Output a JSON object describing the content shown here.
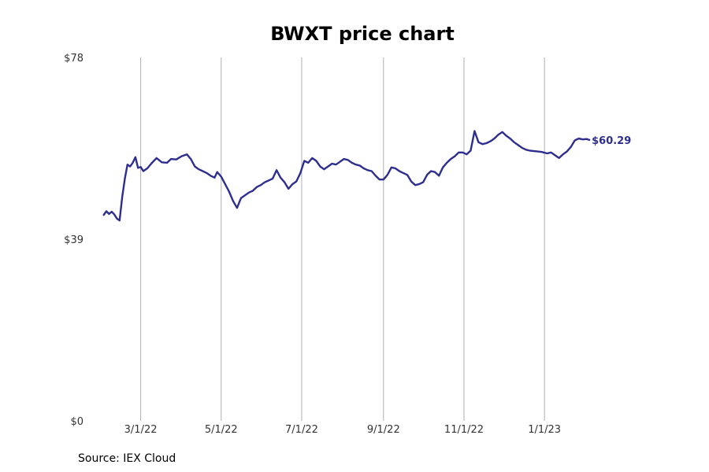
{
  "chart_data": {
    "type": "line",
    "title": "BWXT price chart",
    "source": "Source: IEX Cloud",
    "xlabel": "",
    "ylabel": "",
    "y_ticks": [
      "$78",
      "$39",
      "$0"
    ],
    "y_tick_values": [
      78,
      39,
      0
    ],
    "ylim": [
      0,
      78
    ],
    "x_ticks": [
      {
        "date": "2022-03-01",
        "label": "3/1/22"
      },
      {
        "date": "2022-05-01",
        "label": "5/1/22"
      },
      {
        "date": "2022-07-01",
        "label": "7/1/22"
      },
      {
        "date": "2022-09-01",
        "label": "9/1/22"
      },
      {
        "date": "2022-11-01",
        "label": "11/1/22"
      },
      {
        "date": "2023-01-01",
        "label": "1/1/23"
      }
    ],
    "xlim": [
      "2022-01-31",
      "2023-03-01"
    ],
    "vertical_grid": true,
    "line_color": "#2e2e8f",
    "last_value_label": "$60.29",
    "series": [
      {
        "points": [
          [
            "2022-02-01",
            44.2
          ],
          [
            "2022-02-03",
            45.0
          ],
          [
            "2022-02-05",
            44.4
          ],
          [
            "2022-02-07",
            44.9
          ],
          [
            "2022-02-09",
            44.3
          ],
          [
            "2022-02-11",
            43.4
          ],
          [
            "2022-02-13",
            43.0
          ],
          [
            "2022-02-15",
            48.0
          ],
          [
            "2022-02-17",
            52.0
          ],
          [
            "2022-02-19",
            55.0
          ],
          [
            "2022-02-21",
            54.6
          ],
          [
            "2022-02-23",
            55.4
          ],
          [
            "2022-02-25",
            56.6
          ],
          [
            "2022-02-27",
            54.3
          ],
          [
            "2022-03-01",
            54.5
          ],
          [
            "2022-03-03",
            53.6
          ],
          [
            "2022-03-06",
            54.2
          ],
          [
            "2022-03-09",
            55.2
          ],
          [
            "2022-03-13",
            56.4
          ],
          [
            "2022-03-17",
            55.5
          ],
          [
            "2022-03-21",
            55.4
          ],
          [
            "2022-03-24",
            56.2
          ],
          [
            "2022-03-28",
            56.1
          ],
          [
            "2022-04-01",
            56.8
          ],
          [
            "2022-04-05",
            57.2
          ],
          [
            "2022-04-08",
            56.2
          ],
          [
            "2022-04-11",
            54.6
          ],
          [
            "2022-04-14",
            54.0
          ],
          [
            "2022-04-17",
            53.6
          ],
          [
            "2022-04-20",
            53.2
          ],
          [
            "2022-04-23",
            52.6
          ],
          [
            "2022-04-26",
            52.2
          ],
          [
            "2022-04-28",
            53.4
          ],
          [
            "2022-05-01",
            52.4
          ],
          [
            "2022-05-04",
            50.8
          ],
          [
            "2022-05-07",
            49.2
          ],
          [
            "2022-05-10",
            47.2
          ],
          [
            "2022-05-13",
            45.7
          ],
          [
            "2022-05-16",
            47.8
          ],
          [
            "2022-05-19",
            48.4
          ],
          [
            "2022-05-22",
            49.0
          ],
          [
            "2022-05-25",
            49.4
          ],
          [
            "2022-05-28",
            50.2
          ],
          [
            "2022-05-31",
            50.6
          ],
          [
            "2022-06-03",
            51.2
          ],
          [
            "2022-06-06",
            51.6
          ],
          [
            "2022-06-09",
            52.0
          ],
          [
            "2022-06-12",
            53.8
          ],
          [
            "2022-06-15",
            52.2
          ],
          [
            "2022-06-18",
            51.2
          ],
          [
            "2022-06-21",
            49.8
          ],
          [
            "2022-06-24",
            50.8
          ],
          [
            "2022-06-27",
            51.4
          ],
          [
            "2022-06-30",
            53.2
          ],
          [
            "2022-07-03",
            55.8
          ],
          [
            "2022-07-06",
            55.4
          ],
          [
            "2022-07-09",
            56.4
          ],
          [
            "2022-07-12",
            55.8
          ],
          [
            "2022-07-15",
            54.6
          ],
          [
            "2022-07-18",
            54.0
          ],
          [
            "2022-07-21",
            54.6
          ],
          [
            "2022-07-24",
            55.2
          ],
          [
            "2022-07-27",
            55.0
          ],
          [
            "2022-07-30",
            55.6
          ],
          [
            "2022-08-02",
            56.2
          ],
          [
            "2022-08-05",
            56.0
          ],
          [
            "2022-08-08",
            55.4
          ],
          [
            "2022-08-11",
            55.0
          ],
          [
            "2022-08-14",
            54.8
          ],
          [
            "2022-08-17",
            54.2
          ],
          [
            "2022-08-20",
            53.8
          ],
          [
            "2022-08-23",
            53.6
          ],
          [
            "2022-08-26",
            52.6
          ],
          [
            "2022-08-29",
            51.8
          ],
          [
            "2022-09-01",
            51.8
          ],
          [
            "2022-09-04",
            52.8
          ],
          [
            "2022-09-07",
            54.4
          ],
          [
            "2022-09-10",
            54.2
          ],
          [
            "2022-09-13",
            53.6
          ],
          [
            "2022-09-16",
            53.2
          ],
          [
            "2022-09-19",
            52.8
          ],
          [
            "2022-09-22",
            51.4
          ],
          [
            "2022-09-25",
            50.6
          ],
          [
            "2022-09-28",
            50.8
          ],
          [
            "2022-10-01",
            51.2
          ],
          [
            "2022-10-04",
            52.8
          ],
          [
            "2022-10-07",
            53.6
          ],
          [
            "2022-10-10",
            53.4
          ],
          [
            "2022-10-13",
            52.6
          ],
          [
            "2022-10-16",
            54.4
          ],
          [
            "2022-10-19",
            55.4
          ],
          [
            "2022-10-22",
            56.2
          ],
          [
            "2022-10-25",
            56.8
          ],
          [
            "2022-10-28",
            57.6
          ],
          [
            "2022-10-31",
            57.6
          ],
          [
            "2022-11-03",
            57.2
          ],
          [
            "2022-11-06",
            58.0
          ],
          [
            "2022-11-09",
            62.2
          ],
          [
            "2022-11-12",
            59.8
          ],
          [
            "2022-11-15",
            59.4
          ],
          [
            "2022-11-18",
            59.6
          ],
          [
            "2022-11-21",
            60.0
          ],
          [
            "2022-11-24",
            60.6
          ],
          [
            "2022-11-27",
            61.4
          ],
          [
            "2022-11-30",
            62.0
          ],
          [
            "2022-12-03",
            61.2
          ],
          [
            "2022-12-06",
            60.6
          ],
          [
            "2022-12-09",
            59.8
          ],
          [
            "2022-12-12",
            59.2
          ],
          [
            "2022-12-15",
            58.6
          ],
          [
            "2022-12-18",
            58.2
          ],
          [
            "2022-12-21",
            58.0
          ],
          [
            "2022-12-24",
            57.9
          ],
          [
            "2022-12-27",
            57.8
          ],
          [
            "2022-12-30",
            57.7
          ],
          [
            "2023-01-03",
            57.4
          ],
          [
            "2023-01-06",
            57.6
          ],
          [
            "2023-01-09",
            57.0
          ],
          [
            "2023-01-12",
            56.4
          ],
          [
            "2023-01-15",
            57.2
          ],
          [
            "2023-01-18",
            57.8
          ],
          [
            "2023-01-21",
            58.8
          ],
          [
            "2023-01-24",
            60.2
          ],
          [
            "2023-01-27",
            60.6
          ],
          [
            "2023-01-30",
            60.4
          ],
          [
            "2023-02-02",
            60.5
          ],
          [
            "2023-02-04",
            60.29
          ]
        ]
      }
    ]
  }
}
